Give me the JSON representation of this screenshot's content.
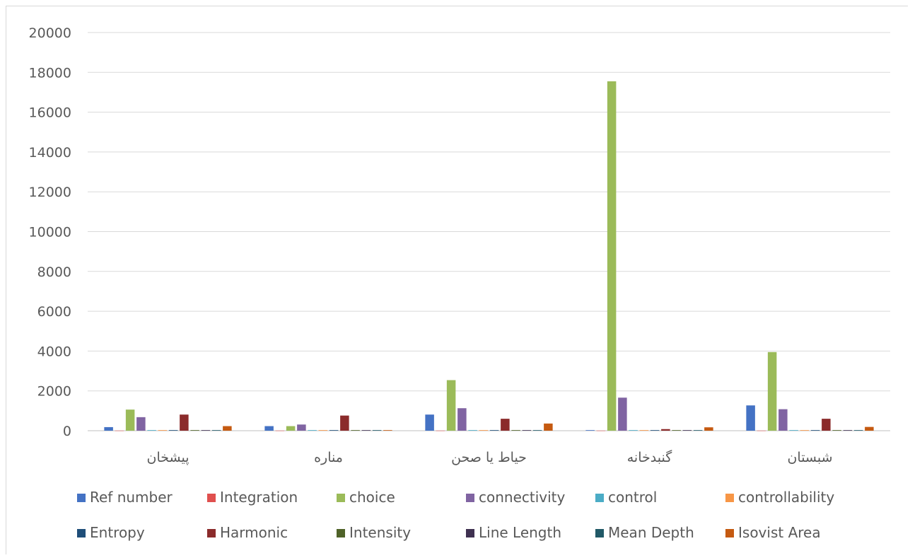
{
  "chart_data": {
    "type": "bar",
    "title": "",
    "xlabel": "",
    "ylabel": "",
    "ylim": [
      0,
      20000
    ],
    "yticks": [
      "0",
      "2000",
      "4000",
      "6000",
      "8000",
      "10000",
      "12000",
      "14000",
      "16000",
      "18000",
      "20000"
    ],
    "grid": true,
    "legend_position": "bottom",
    "categories": [
      "پیشخان",
      "مناره",
      "حیاط یا صحن",
      "گنبدخانه",
      "شبستان"
    ],
    "series": [
      {
        "name": "Ref number",
        "color": "#4472c4",
        "values": [
          180,
          230,
          810,
          30,
          1270
        ]
      },
      {
        "name": "Integration",
        "color": "#e0504e",
        "values": [
          5,
          5,
          5,
          5,
          5
        ]
      },
      {
        "name": "choice",
        "color": "#9bbb59",
        "values": [
          1060,
          230,
          2540,
          17550,
          3950
        ]
      },
      {
        "name": "connectivity",
        "color": "#8064a2",
        "values": [
          680,
          310,
          1130,
          1660,
          1080
        ]
      },
      {
        "name": "control",
        "color": "#4bacc6",
        "values": [
          30,
          30,
          30,
          30,
          30
        ]
      },
      {
        "name": "controllability",
        "color": "#f79646",
        "values": [
          30,
          30,
          30,
          30,
          30
        ]
      },
      {
        "name": "Entropy",
        "color": "#1f4e79",
        "values": [
          30,
          30,
          30,
          30,
          30
        ]
      },
      {
        "name": "Harmonic",
        "color": "#8b2b2b",
        "values": [
          810,
          760,
          600,
          80,
          600
        ]
      },
      {
        "name": "Intensity",
        "color": "#4f6228",
        "values": [
          30,
          30,
          30,
          30,
          30
        ]
      },
      {
        "name": "Line Length",
        "color": "#3f3151",
        "values": [
          30,
          30,
          30,
          30,
          30
        ]
      },
      {
        "name": "Mean Depth",
        "color": "#215967",
        "values": [
          30,
          30,
          30,
          30,
          30
        ]
      },
      {
        "name": "Isovist Area",
        "color": "#c55a11",
        "values": [
          230,
          30,
          360,
          170,
          190
        ]
      }
    ]
  }
}
